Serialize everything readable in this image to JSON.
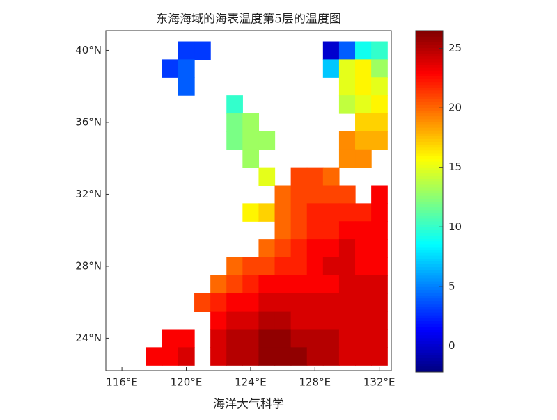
{
  "chart_data": {
    "type": "heatmap",
    "title": "东海海域的海表温度第5层的温度图",
    "xlabel": "海洋大气科学",
    "x": [
      118,
      119,
      120,
      121,
      122,
      123,
      124,
      125,
      126,
      127,
      128,
      129,
      130,
      131,
      132
    ],
    "y": [
      40,
      39,
      38,
      37,
      36,
      35,
      34,
      33,
      32,
      31,
      30,
      29,
      28,
      27,
      26,
      25,
      24,
      23
    ],
    "z": [
      [
        null,
        null,
        3,
        3,
        null,
        null,
        null,
        null,
        null,
        null,
        null,
        0,
        4,
        9,
        10
      ],
      [
        null,
        3,
        4,
        null,
        null,
        null,
        null,
        null,
        null,
        null,
        null,
        7,
        15,
        16,
        13
      ],
      [
        null,
        null,
        4,
        null,
        null,
        null,
        null,
        null,
        null,
        null,
        null,
        null,
        15,
        16,
        15
      ],
      [
        null,
        null,
        null,
        null,
        null,
        10,
        null,
        null,
        null,
        null,
        null,
        null,
        14,
        15,
        16
      ],
      [
        null,
        null,
        null,
        null,
        null,
        12,
        13,
        null,
        null,
        null,
        null,
        null,
        null,
        17,
        17
      ],
      [
        null,
        null,
        null,
        null,
        null,
        12,
        13,
        13,
        null,
        null,
        null,
        null,
        19,
        18,
        18
      ],
      [
        null,
        null,
        null,
        null,
        null,
        null,
        13,
        null,
        null,
        null,
        null,
        null,
        19,
        19,
        null
      ],
      [
        null,
        null,
        null,
        null,
        null,
        null,
        null,
        15,
        null,
        21,
        21,
        20,
        null,
        null,
        null
      ],
      [
        null,
        null,
        null,
        null,
        null,
        null,
        null,
        null,
        20,
        21,
        21,
        21,
        21,
        null,
        23
      ],
      [
        null,
        null,
        null,
        null,
        null,
        null,
        16,
        17,
        20,
        21,
        22,
        22,
        22,
        22,
        23
      ],
      [
        null,
        null,
        null,
        null,
        null,
        null,
        null,
        null,
        20,
        21,
        22,
        22,
        23,
        23,
        23
      ],
      [
        null,
        null,
        null,
        null,
        null,
        null,
        null,
        20,
        21,
        22,
        23,
        23,
        24,
        23,
        23
      ],
      [
        null,
        null,
        null,
        null,
        null,
        20,
        21,
        21,
        22,
        22,
        23,
        24,
        24,
        23,
        23
      ],
      [
        null,
        null,
        null,
        null,
        20,
        21,
        22,
        23,
        23,
        23,
        23,
        23,
        24,
        24,
        24
      ],
      [
        null,
        null,
        null,
        21,
        22,
        23,
        23,
        24,
        24,
        24,
        24,
        24,
        24,
        24,
        24
      ],
      [
        null,
        null,
        null,
        null,
        23,
        24,
        24,
        25,
        25,
        24,
        24,
        24,
        24,
        24,
        24
      ],
      [
        null,
        23,
        23,
        null,
        24,
        25,
        25,
        26,
        26,
        25,
        25,
        25,
        24,
        24,
        24
      ],
      [
        23,
        23,
        24,
        null,
        24,
        25,
        25,
        26,
        26,
        26,
        25,
        25,
        24,
        24,
        24
      ]
    ],
    "xlim": [
      115,
      132.75
    ],
    "ylim": [
      22.2,
      41.1
    ],
    "xticks": [
      {
        "value": 116,
        "label": "116°E"
      },
      {
        "value": 120,
        "label": "120°E"
      },
      {
        "value": 124,
        "label": "124°E"
      },
      {
        "value": 128,
        "label": "128°E"
      },
      {
        "value": 132,
        "label": "132°E"
      }
    ],
    "yticks": [
      {
        "value": 24,
        "label": "24°N"
      },
      {
        "value": 28,
        "label": "28°N"
      },
      {
        "value": 32,
        "label": "32°N"
      },
      {
        "value": 36,
        "label": "36°N"
      },
      {
        "value": 40,
        "label": "40°N"
      }
    ],
    "colormap": "jet",
    "clim": [
      -2.2,
      26.5
    ],
    "colorbar_ticks": [
      0,
      5,
      10,
      15,
      20,
      25
    ]
  }
}
